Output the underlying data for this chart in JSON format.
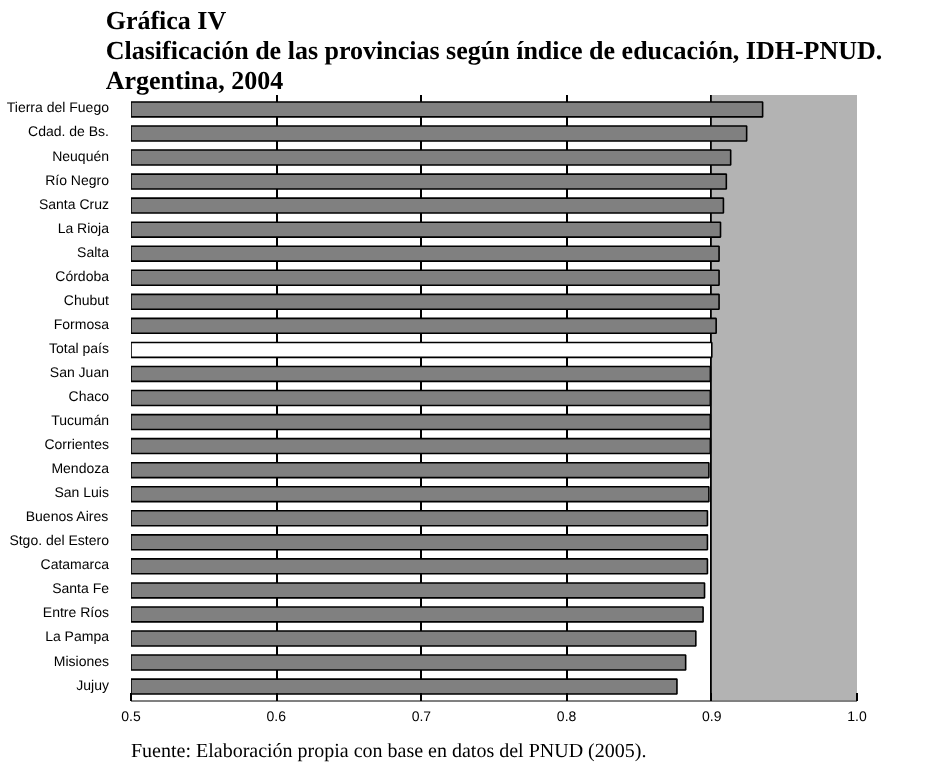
{
  "chart_data": {
    "type": "bar",
    "orientation": "horizontal",
    "title": "Gráfica IV\nClasificación de las provincias según índice de educación, IDH-PNUD.\nArgentina, 2004",
    "categories": [
      "Tierra del Fuego",
      "Cdad. de Bs.",
      "Neuquén",
      "Río Negro",
      "Santa Cruz",
      "La Rioja",
      "Salta",
      "Córdoba",
      "Chubut",
      "Formosa",
      "Total país",
      "San Juan",
      "Chaco",
      "Tucumán",
      "Corrientes",
      "Mendoza",
      "San Luis",
      "Buenos Aires",
      "Stgo. del Estero",
      "Catamarca",
      "Santa Fe",
      "Entre Ríos",
      "La Pampa",
      "Misiones",
      "Jujuy"
    ],
    "values": [
      0.935,
      0.924,
      0.913,
      0.91,
      0.908,
      0.906,
      0.905,
      0.905,
      0.905,
      0.903,
      0.9,
      0.899,
      0.899,
      0.899,
      0.899,
      0.898,
      0.898,
      0.897,
      0.897,
      0.897,
      0.895,
      0.894,
      0.889,
      0.882,
      0.876
    ],
    "colors": [
      "#808080",
      "#808080",
      "#808080",
      "#808080",
      "#808080",
      "#808080",
      "#808080",
      "#808080",
      "#808080",
      "#808080",
      "#ffffff",
      "#808080",
      "#808080",
      "#808080",
      "#808080",
      "#808080",
      "#808080",
      "#808080",
      "#808080",
      "#808080",
      "#808080",
      "#808080",
      "#808080",
      "#808080",
      "#808080"
    ],
    "xlim": [
      0.5,
      1.0
    ],
    "xticks": [
      0.5,
      0.6,
      0.7,
      0.8,
      0.9,
      {
        "value": 1.0,
        "label": "1.0"
      }
    ],
    "bands": [
      {
        "axis": "x",
        "from": 0.9,
        "to": 1.0,
        "color": "#b3b3b3"
      }
    ],
    "grid": "x",
    "annotations": [
      "Fuente: Elaboración propia con base en datos del PNUD (2005)."
    ]
  }
}
